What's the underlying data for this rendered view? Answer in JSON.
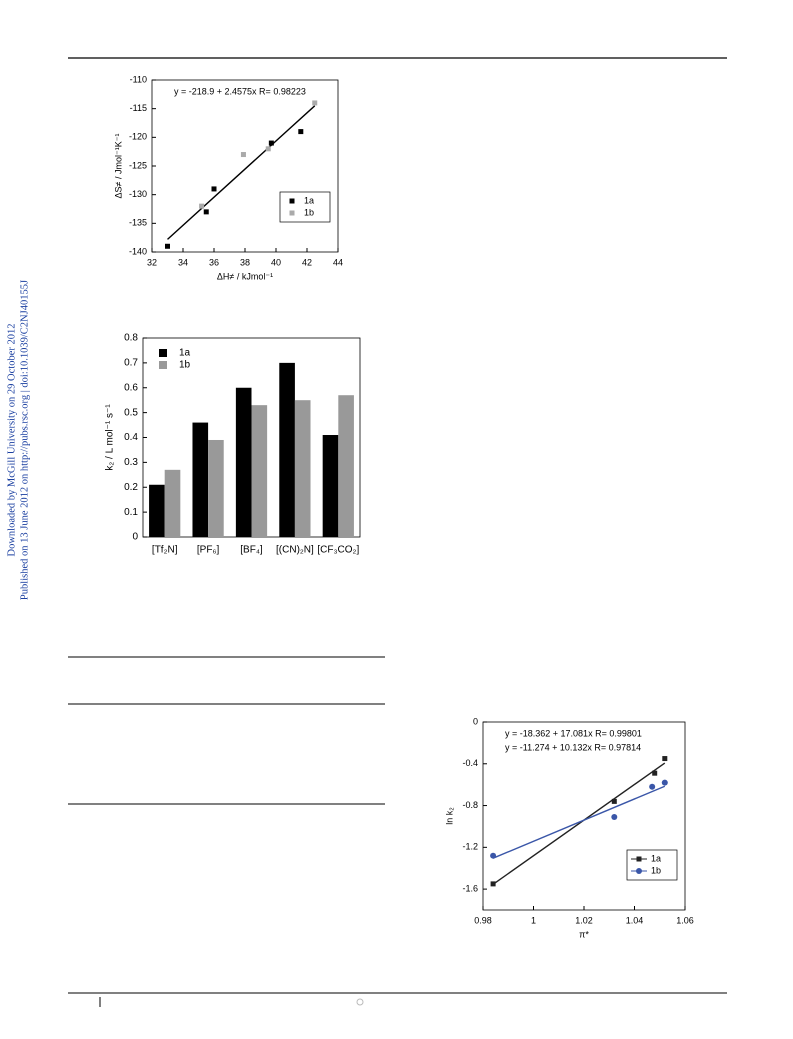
{
  "sidebar": [
    "Downloaded by McGill University on 29 October 2012",
    "Published on 13 June 2012 on http://pubs.rsc.org | doi:10.1039/C2NJ40155J"
  ],
  "chart_data": [
    {
      "type": "scatter",
      "annotations": [
        {
          "text": "y = -218.9 + 2.4575x   R= 0.98223",
          "color": "#000000"
        }
      ],
      "x_label": "ΔH≠ / kJmol⁻¹",
      "y_label": "ΔS≠ / Jmol⁻¹K⁻¹",
      "xlim": [
        32,
        44
      ],
      "xticks": [
        32,
        34,
        36,
        38,
        40,
        42,
        44
      ],
      "ylim": [
        -140,
        -110
      ],
      "yticks": [
        -140,
        -135,
        -130,
        -125,
        -120,
        -115,
        -110
      ],
      "legend": "lower right",
      "series": [
        {
          "name": "1a",
          "color": "#000000",
          "marker": "square",
          "x": [
            33.0,
            35.5,
            36.0,
            39.7,
            41.6
          ],
          "values": [
            -139,
            -133,
            -129,
            -121,
            -119
          ]
        },
        {
          "name": "1b",
          "color": "#aaaaaa",
          "marker": "square",
          "x": [
            35.2,
            37.9,
            39.5,
            42.5
          ],
          "values": [
            -132,
            -123,
            -122,
            -114
          ]
        }
      ],
      "fit": {
        "color": "#000000",
        "x": [
          33,
          42.5
        ],
        "values": [
          -137.8,
          -114.5
        ]
      }
    },
    {
      "type": "bar",
      "y_label": "k₂ / L mol⁻¹ s⁻¹",
      "categories": [
        "[Tf₂N]",
        "[PF₆]",
        "[BF₄]",
        "[(CN)₂N]",
        "[CF₃CO₂]"
      ],
      "ylim": [
        0,
        0.8
      ],
      "yticks": [
        0,
        0.1,
        0.2,
        0.3,
        0.4,
        0.5,
        0.6,
        0.7,
        0.8
      ],
      "legend": "upper left",
      "series": [
        {
          "name": "1a",
          "color": "#000000",
          "values": [
            0.21,
            0.46,
            0.6,
            0.7,
            0.41
          ]
        },
        {
          "name": "1b",
          "color": "#999999",
          "values": [
            0.27,
            0.39,
            0.53,
            0.55,
            0.57
          ]
        }
      ]
    },
    {
      "type": "scatter",
      "annotations": [
        {
          "text": "y = -18.362 + 17.081x   R= 0.99801",
          "color": "#222222"
        },
        {
          "text": "y = -11.274 + 10.132x   R= 0.97814",
          "color": "#3a56a8"
        }
      ],
      "x_label": "π*",
      "y_label": "ln k₂",
      "xlim": [
        0.98,
        1.06
      ],
      "xticks": [
        0.98,
        1,
        1.02,
        1.04,
        1.06
      ],
      "ylim": [
        -1.8,
        0
      ],
      "yticks": [
        -1.6,
        -1.2,
        -0.8,
        -0.4,
        0
      ],
      "legend": "lower right",
      "series": [
        {
          "name": "1a",
          "color": "#222222",
          "marker": "square",
          "x": [
            0.984,
            1.032,
            1.048,
            1.052
          ],
          "values": [
            -1.55,
            -0.76,
            -0.49,
            -0.35
          ],
          "fit": {
            "x": [
              0.984,
              1.052
            ],
            "values": [
              -1.554,
              -0.393
            ]
          }
        },
        {
          "name": "1b",
          "color": "#3a56a8",
          "marker": "circle",
          "x": [
            0.984,
            1.032,
            1.047,
            1.052
          ],
          "values": [
            -1.28,
            -0.91,
            -0.62,
            -0.58
          ],
          "fit": {
            "x": [
              0.984,
              1.052
            ],
            "values": [
              -1.304,
              -0.615
            ]
          }
        }
      ]
    }
  ]
}
